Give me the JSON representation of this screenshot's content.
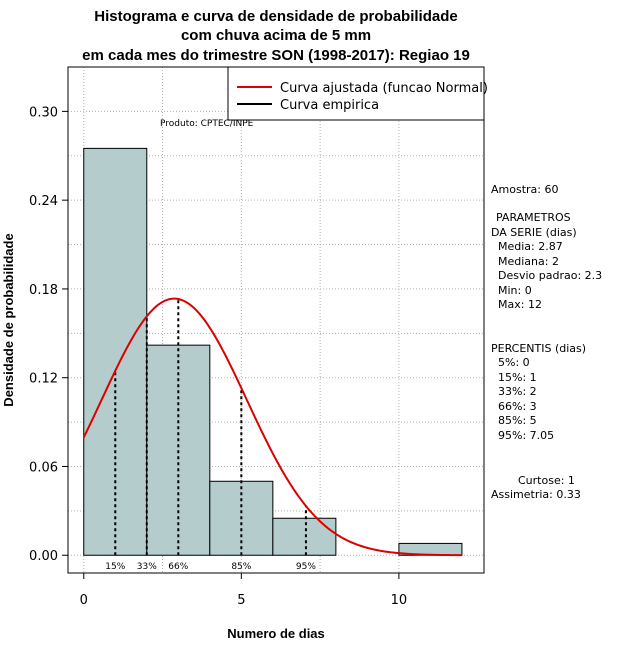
{
  "chart_data": {
    "type": "bar",
    "title_lines": [
      "Histograma e curva de densidade de probabilidade",
      "com chuva acima de 5 mm",
      "em cada mes do trimestre SON (1998-2017): Regiao 19"
    ],
    "xlabel": "Numero de dias",
    "ylabel": "Densidade de probabilidade",
    "xlim": [
      -0.5,
      12.7
    ],
    "ylim": [
      -0.012,
      0.33
    ],
    "xticks": [
      0,
      5,
      10
    ],
    "yticks": [
      0.0,
      0.06,
      0.12,
      0.18,
      0.24,
      0.3
    ],
    "ytick_labels": [
      "0.00",
      "0.06",
      "0.12",
      "0.18",
      "0.24",
      "0.30"
    ],
    "bins": [
      {
        "x0": 0,
        "x1": 2,
        "density": 0.275
      },
      {
        "x0": 2,
        "x1": 4,
        "density": 0.142
      },
      {
        "x0": 4,
        "x1": 6,
        "density": 0.05
      },
      {
        "x0": 6,
        "x1": 8,
        "density": 0.025
      },
      {
        "x0": 8,
        "x1": 10,
        "density": 0.0
      },
      {
        "x0": 10,
        "x1": 12,
        "density": 0.008
      }
    ],
    "normal_fit": {
      "mean": 2.87,
      "sd": 2.3,
      "x_from": 0,
      "x_to": 12,
      "color": "#dd0000"
    },
    "percentile_lines": [
      {
        "label": "15%",
        "x": 1
      },
      {
        "label": "33%",
        "x": 2
      },
      {
        "label": "66%",
        "x": 3
      },
      {
        "label": "85%",
        "x": 5
      },
      {
        "label": "95%",
        "x": 7.05
      }
    ],
    "legend": [
      {
        "label": "Curva ajustada (funcao Normal)",
        "color": "#dd0000"
      },
      {
        "label": "Curva empirica",
        "color": "#000000"
      }
    ],
    "legend_position": "top-right",
    "bar_color": "#b4cccc",
    "grid": true,
    "product_label": "Produto: CPTEC/INPE"
  },
  "stats": {
    "sample": "Amostra: 60",
    "params_header_1": "PARAMETROS",
    "params_header_2": "DA SERIE (dias)",
    "media": "Media: 2.87",
    "mediana": "Mediana: 2",
    "desvio": "Desvio padrao: 2.3",
    "min": "Min: 0",
    "max": "Max: 12",
    "percentis_header": "PERCENTIS (dias)",
    "p5": "5%: 0",
    "p15": "15%: 1",
    "p33": "33%: 2",
    "p66": "66%: 3",
    "p85": "85%: 5",
    "p95": "95%: 7.05",
    "curtose": "Curtose: 1",
    "assimetria": "Assimetria: 0.33"
  }
}
